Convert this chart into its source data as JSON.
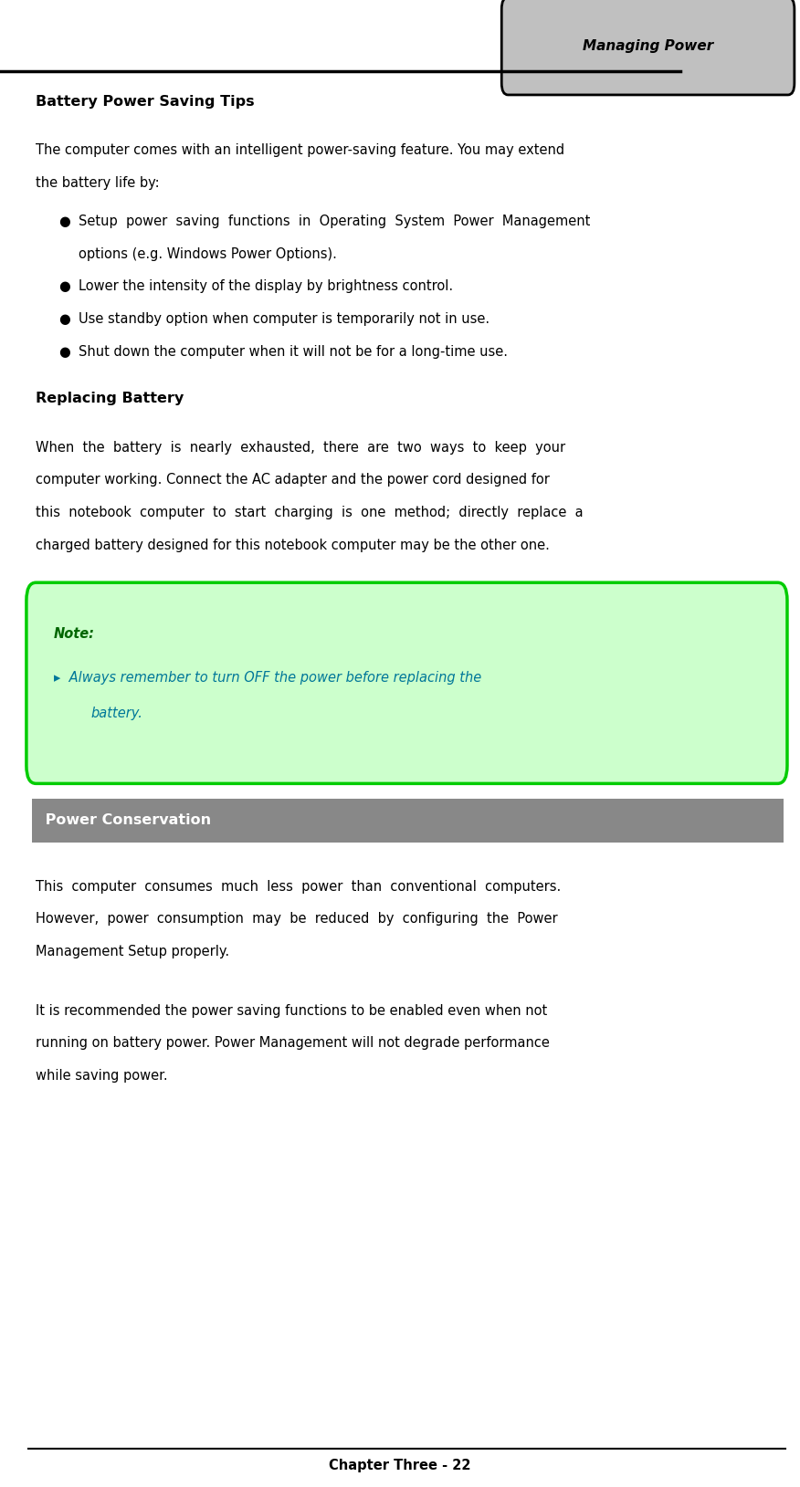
{
  "title_tab": "Managing Power",
  "battery_tips_heading": "Battery Power Saving Tips",
  "replacing_heading": "Replacing Battery",
  "note_label": "Note:",
  "power_conservation_heading": " Power Conservation",
  "footer_text": "Chapter Three - 22",
  "bg_color": "#ffffff",
  "tab_bg": "#c0c0c0",
  "tab_border": "#000000",
  "note_bg": "#ccffcc",
  "note_border": "#00cc00",
  "note_label_color": "#006600",
  "note_text_color": "#007799",
  "pc_heading_bg": "#888888",
  "pc_heading_fg": "#ffffff",
  "text_color": "#000000",
  "body_font_size": 10.5,
  "heading_font_size": 11.5,
  "tab_font_size": 11.0
}
